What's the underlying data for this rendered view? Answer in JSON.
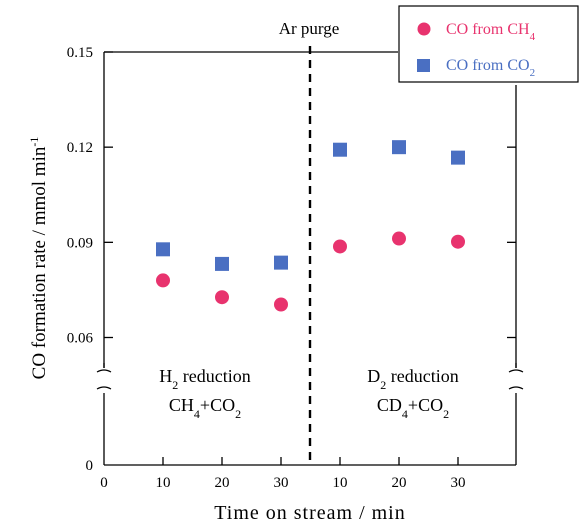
{
  "chart_data": {
    "type": "scatter",
    "title": "",
    "xlabel": "Time on stream / min",
    "ylabel": {
      "main": "CO formation rate / mmol min",
      "sup": "-1"
    },
    "x_tick_labels": [
      "0",
      "10",
      "20",
      "30",
      "10",
      "20",
      "30"
    ],
    "y_tick_labels": [
      "0",
      "0.06",
      "0.09",
      "0.12",
      "0.15"
    ],
    "y_ticks": [
      0,
      0.06,
      0.09,
      0.12,
      0.15
    ],
    "y_axis_break": true,
    "grid": false,
    "legend_position": "top-right",
    "divider_label": "Ar purge",
    "region_labels": [
      {
        "line1": {
          "a": "H",
          "sub": "2",
          "b": " reduction"
        },
        "line2": {
          "a": "CH",
          "sub1": "4",
          "b": "+CO",
          "sub2": "2"
        }
      },
      {
        "line1": {
          "a": "D",
          "sub": "2",
          "b": " reduction"
        },
        "line2": {
          "a": "CD",
          "sub1": "4",
          "b": "+CO",
          "sub2": "2"
        }
      }
    ],
    "series": [
      {
        "legend": {
          "text": "CO from CH",
          "sub": "4"
        },
        "marker": "circle",
        "color": "#e8336e",
        "points": [
          {
            "x_index": 1,
            "y": 0.078
          },
          {
            "x_index": 2,
            "y": 0.0727
          },
          {
            "x_index": 3,
            "y": 0.0704
          },
          {
            "x_index": 4,
            "y": 0.0887
          },
          {
            "x_index": 5,
            "y": 0.0912
          },
          {
            "x_index": 6,
            "y": 0.0902
          }
        ]
      },
      {
        "legend": {
          "text": "CO from CO",
          "sub": "2"
        },
        "marker": "square",
        "color": "#4a6fc2",
        "points": [
          {
            "x_index": 1,
            "y": 0.0878
          },
          {
            "x_index": 2,
            "y": 0.0832
          },
          {
            "x_index": 3,
            "y": 0.0836
          },
          {
            "x_index": 4,
            "y": 0.1192
          },
          {
            "x_index": 5,
            "y": 0.12
          },
          {
            "x_index": 6,
            "y": 0.1167
          }
        ]
      }
    ]
  }
}
